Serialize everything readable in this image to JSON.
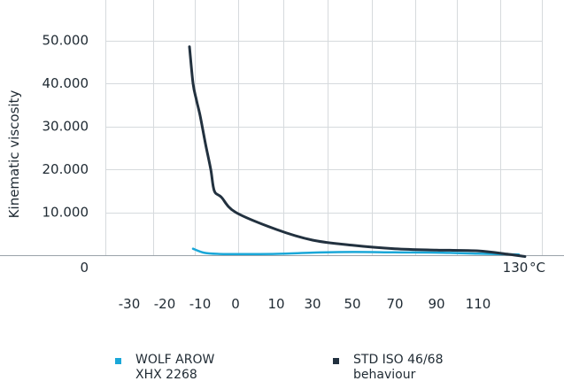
{
  "chart_data": {
    "type": "line",
    "ylabel": "Kinematic viscosity",
    "unit_label": "°C",
    "y_ticks": [
      "0",
      "10.000",
      "20.000",
      "30.000",
      "40.000",
      "50.000"
    ],
    "x_ticks": [
      "-30",
      "-20",
      "-10",
      "0",
      "10",
      "30",
      "50",
      "70",
      "90",
      "110",
      "130"
    ],
    "grid": true,
    "legend_position": "bottom",
    "series": [
      {
        "name": "WOLF AROW\nXHX 2268",
        "color": "#1aa7d8",
        "points": [
          [
            -12,
            1500
          ],
          [
            -9,
            600
          ],
          [
            -5,
            300
          ],
          [
            0,
            250
          ],
          [
            10,
            300
          ],
          [
            30,
            600
          ],
          [
            50,
            750
          ],
          [
            70,
            650
          ],
          [
            90,
            600
          ],
          [
            110,
            350
          ],
          [
            130,
            150
          ]
        ]
      },
      {
        "name": "STD ISO 46/68\nbehaviour",
        "color": "#22313f",
        "points": [
          [
            -13,
            48500
          ],
          [
            -12,
            40000
          ],
          [
            -11,
            36000
          ],
          [
            -10,
            32500
          ],
          [
            -8.5,
            26000
          ],
          [
            -7,
            20000
          ],
          [
            -6,
            15000
          ],
          [
            -4,
            13500
          ],
          [
            0,
            10000
          ],
          [
            10,
            6000
          ],
          [
            30,
            3500
          ],
          [
            50,
            2300
          ],
          [
            70,
            1500
          ],
          [
            90,
            1200
          ],
          [
            110,
            1000
          ],
          [
            125,
            200
          ],
          [
            133,
            -300
          ]
        ]
      }
    ]
  }
}
